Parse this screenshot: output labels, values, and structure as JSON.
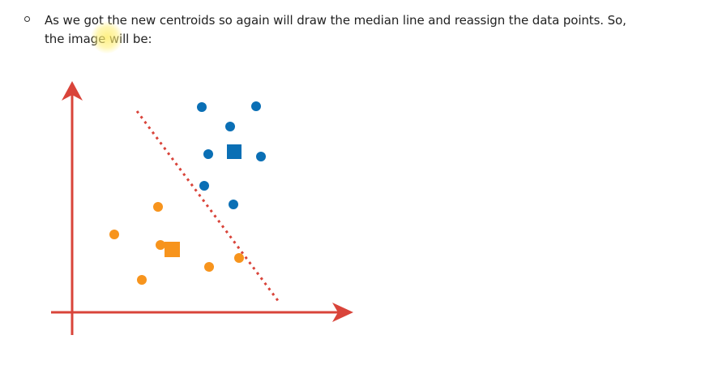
{
  "bullet": {
    "line1": "As we got the new centroids so again will draw the median line and reassign the data points. So,",
    "line2": "the image will be:"
  },
  "colors": {
    "axis": "#d9443a",
    "cluster_blue": "#0a6fb5",
    "cluster_orange": "#f7941d",
    "median_line": "#d9443a",
    "highlight": "#fff176"
  },
  "diagram": {
    "type": "k-means clustering illustration",
    "blue_cluster": {
      "points": 8,
      "centroid_shape": "square"
    },
    "orange_cluster": {
      "points": 7,
      "centroid_shape": "square"
    },
    "median_line_style": "dotted"
  }
}
